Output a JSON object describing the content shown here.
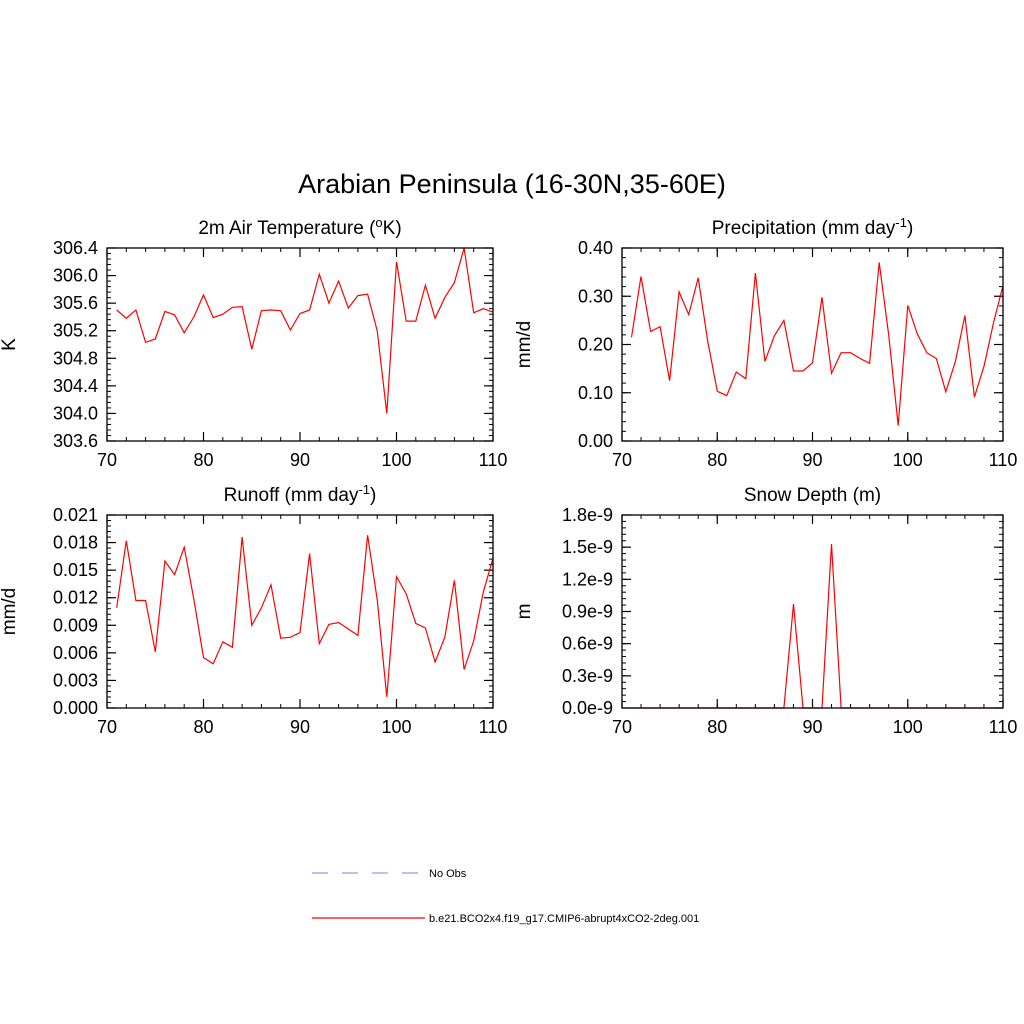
{
  "figure": {
    "title": "Arabian Peninsula (16-30N,35-60E)"
  },
  "legend": {
    "entries": [
      {
        "label": "No Obs",
        "style": "dashed",
        "color": "#9999ee"
      },
      {
        "label": "b.e21.BCO2x4.f19_g17.CMIP6-abrupt4xCO2-2deg.001",
        "style": "solid",
        "color": "#ff0000"
      }
    ]
  },
  "colors": {
    "series": "#ff0000",
    "axis": "#000000"
  },
  "chart_data": [
    {
      "type": "line",
      "title": "2m Air Temperature (oK)",
      "title_parts": [
        "2m Air Temperature (",
        "o",
        "K)"
      ],
      "title_sup": "o",
      "ylabel": "K",
      "xlim": [
        70,
        110
      ],
      "ylim": [
        303.6,
        306.4
      ],
      "xticks": [
        70,
        80,
        90,
        100,
        110
      ],
      "xtick_labels": [
        "70",
        "80",
        "90",
        "100",
        "110"
      ],
      "yticks": [
        303.6,
        304.0,
        304.4,
        304.8,
        305.2,
        305.6,
        306.0,
        306.4
      ],
      "ytick_labels": [
        "303.6",
        "304.0",
        "304.4",
        "304.8",
        "305.2",
        "305.6",
        "306.0",
        "306.4"
      ],
      "x": [
        71,
        72,
        73,
        74,
        75,
        76,
        77,
        78,
        79,
        80,
        81,
        82,
        83,
        84,
        85,
        86,
        87,
        88,
        89,
        90,
        91,
        92,
        93,
        94,
        95,
        96,
        97,
        98,
        99,
        100,
        101,
        102,
        103,
        104,
        105,
        106,
        107,
        108,
        109,
        110
      ],
      "y": [
        305.5,
        305.38,
        305.5,
        305.03,
        305.08,
        305.48,
        305.43,
        305.17,
        305.4,
        305.72,
        305.39,
        305.44,
        305.54,
        305.55,
        304.93,
        305.49,
        305.5,
        305.49,
        305.21,
        305.45,
        305.5,
        306.02,
        305.6,
        305.92,
        305.53,
        305.71,
        305.73,
        305.2,
        304.0,
        306.2,
        305.34,
        305.34,
        305.86,
        305.38,
        305.68,
        305.9,
        306.4,
        305.46,
        305.52,
        305.47
      ]
    },
    {
      "type": "line",
      "title": "Precipitation (mm day-1)",
      "title_parts": [
        "Precipitation (mm day",
        "-1",
        ")"
      ],
      "title_sup": "-1",
      "ylabel": "mm/d",
      "xlim": [
        70,
        110
      ],
      "ylim": [
        0.0,
        0.4
      ],
      "xticks": [
        70,
        80,
        90,
        100,
        110
      ],
      "xtick_labels": [
        "70",
        "80",
        "90",
        "100",
        "110"
      ],
      "yticks": [
        0.0,
        0.1,
        0.2,
        0.3,
        0.4
      ],
      "ytick_labels": [
        "0.00",
        "0.10",
        "0.20",
        "0.30",
        "0.40"
      ],
      "x": [
        71,
        72,
        73,
        74,
        75,
        76,
        77,
        78,
        79,
        80,
        81,
        82,
        83,
        84,
        85,
        86,
        87,
        88,
        89,
        90,
        91,
        92,
        93,
        94,
        95,
        96,
        97,
        98,
        99,
        100,
        101,
        102,
        103,
        104,
        105,
        106,
        107,
        108,
        109,
        110
      ],
      "y": [
        0.215,
        0.341,
        0.227,
        0.237,
        0.125,
        0.309,
        0.262,
        0.338,
        0.207,
        0.103,
        0.094,
        0.143,
        0.129,
        0.348,
        0.165,
        0.218,
        0.25,
        0.145,
        0.145,
        0.162,
        0.298,
        0.14,
        0.183,
        0.183,
        0.171,
        0.161,
        0.37,
        0.22,
        0.032,
        0.281,
        0.222,
        0.183,
        0.171,
        0.102,
        0.165,
        0.26,
        0.091,
        0.155,
        0.245,
        0.322
      ]
    },
    {
      "type": "line",
      "title": "Runoff (mm day-1)",
      "title_parts": [
        "Runoff (mm day",
        "-1",
        ")"
      ],
      "title_sup": "-1",
      "ylabel": "mm/d",
      "xlim": [
        70,
        110
      ],
      "ylim": [
        0.0,
        0.021
      ],
      "xticks": [
        70,
        80,
        90,
        100,
        110
      ],
      "xtick_labels": [
        "70",
        "80",
        "90",
        "100",
        "110"
      ],
      "yticks": [
        0.0,
        0.003,
        0.006,
        0.009,
        0.012,
        0.015,
        0.018,
        0.021
      ],
      "ytick_labels": [
        "0.000",
        "0.003",
        "0.006",
        "0.009",
        "0.012",
        "0.015",
        "0.018",
        "0.021"
      ],
      "x": [
        71,
        72,
        73,
        74,
        75,
        76,
        77,
        78,
        79,
        80,
        81,
        82,
        83,
        84,
        85,
        86,
        87,
        88,
        89,
        90,
        91,
        92,
        93,
        94,
        95,
        96,
        97,
        98,
        99,
        100,
        101,
        102,
        103,
        104,
        105,
        106,
        107,
        108,
        109,
        110
      ],
      "y": [
        0.0109,
        0.0182,
        0.0117,
        0.0117,
        0.0061,
        0.016,
        0.0145,
        0.0175,
        0.0118,
        0.0055,
        0.0048,
        0.0072,
        0.0066,
        0.0186,
        0.009,
        0.0109,
        0.0134,
        0.0076,
        0.0077,
        0.0082,
        0.0168,
        0.007,
        0.0091,
        0.0093,
        0.0086,
        0.0079,
        0.0188,
        0.0118,
        0.0012,
        0.0143,
        0.0124,
        0.0092,
        0.0087,
        0.005,
        0.0077,
        0.0139,
        0.0042,
        0.0073,
        0.0126,
        0.0163
      ]
    },
    {
      "type": "line",
      "title": "Snow Depth (m)",
      "title_parts": [
        "Snow Depth (m)"
      ],
      "ylabel": "m",
      "xlim": [
        70,
        110
      ],
      "ylim": [
        0.0,
        1.8e-09
      ],
      "xticks": [
        70,
        80,
        90,
        100,
        110
      ],
      "xtick_labels": [
        "70",
        "80",
        "90",
        "100",
        "110"
      ],
      "yticks": [
        0.0,
        3e-10,
        6e-10,
        9e-10,
        1.2e-09,
        1.5e-09,
        1.8e-09
      ],
      "ytick_labels": [
        "0.0e-9",
        "0.3e-9",
        "0.6e-9",
        "0.9e-9",
        "1.2e-9",
        "1.5e-9",
        "1.8e-9"
      ],
      "x": [
        71,
        72,
        73,
        74,
        75,
        76,
        77,
        78,
        79,
        80,
        81,
        82,
        83,
        84,
        85,
        86,
        87,
        88,
        89,
        90,
        91,
        92,
        93,
        94,
        95,
        96,
        97,
        98,
        99,
        100,
        101,
        102,
        103,
        104,
        105,
        106,
        107,
        108,
        109,
        110
      ],
      "y": [
        0,
        0,
        0,
        0,
        0,
        0,
        0,
        0,
        0,
        0,
        0,
        0,
        0,
        0,
        0,
        0,
        0,
        9.7e-10,
        0,
        0,
        0,
        1.53e-09,
        0,
        0,
        0,
        0,
        0,
        0,
        0,
        0,
        0,
        0,
        0,
        0,
        0,
        0,
        0,
        0,
        0,
        0
      ]
    }
  ]
}
